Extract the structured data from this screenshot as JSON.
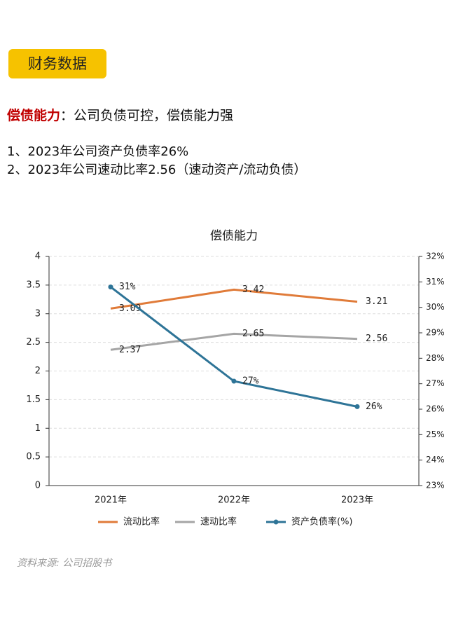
{
  "header": {
    "title": "财务数据"
  },
  "heading": {
    "label": "偿债能力",
    "text": "：公司负债可控，偿债能力强"
  },
  "points": [
    "1、2023年公司资产负债率26%",
    "2、2023年公司速动比率2.56（速动资产/流动负债）"
  ],
  "chart_data": {
    "type": "line",
    "title": "偿债能力",
    "categories": [
      "2021年",
      "2022年",
      "2023年"
    ],
    "series": [
      {
        "name": "流动比率",
        "color": "#e07b39",
        "values": [
          3.09,
          3.42,
          3.21
        ]
      },
      {
        "name": "速动比率",
        "color": "#a5a5a5",
        "values": [
          2.37,
          2.65,
          2.56
        ]
      },
      {
        "name": "资产负债率(%)",
        "color": "#2e7497",
        "axis": "y2",
        "markers": true,
        "values": [
          30.8,
          27.1,
          26.1
        ],
        "value_labels": [
          "31%",
          "27%",
          "26%"
        ]
      }
    ],
    "ylim": [
      0,
      4
    ],
    "yticks": [
      0,
      0.5,
      1,
      1.5,
      2,
      2.5,
      3,
      3.5,
      4
    ],
    "y2lim": [
      23,
      32
    ],
    "y2ticks": [
      {
        "value": 23,
        "label": "23%"
      },
      {
        "value": 24,
        "label": "24%"
      },
      {
        "value": 25,
        "label": "25%"
      },
      {
        "value": 26,
        "label": "26%"
      },
      {
        "value": 27,
        "label": "27%"
      },
      {
        "value": 28,
        "label": "28%"
      },
      {
        "value": 29,
        "label": "29%"
      },
      {
        "value": 30,
        "label": "30%"
      },
      {
        "value": 31,
        "label": "31%"
      },
      {
        "value": 32,
        "label": "32%"
      }
    ],
    "grid": true,
    "legend": "bottom"
  },
  "source": "资料来源: 公司招股书"
}
